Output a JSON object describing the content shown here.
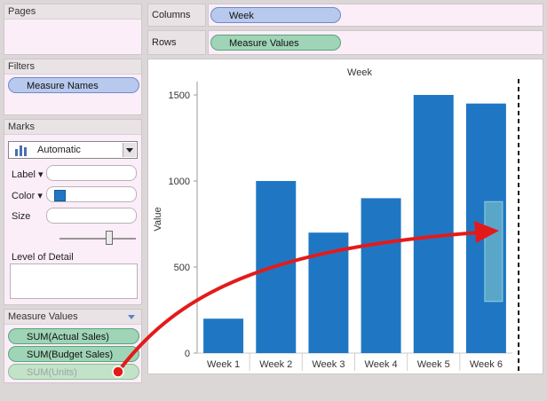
{
  "pages": {
    "title": "Pages"
  },
  "filters": {
    "title": "Filters",
    "pills": [
      "Measure Names"
    ]
  },
  "marks": {
    "title": "Marks",
    "mark_type": "Automatic",
    "label_btn": "Label",
    "color_btn": "Color",
    "size_label": "Size",
    "lod_label": "Level of Detail"
  },
  "measure_values": {
    "title": "Measure Values",
    "items": [
      "SUM(Actual Sales)",
      "SUM(Budget Sales)",
      "SUM(Units)"
    ]
  },
  "shelves": {
    "columns_label": "Columns",
    "columns_pill": "Week",
    "rows_label": "Rows",
    "rows_pill": "Measure Values"
  },
  "colors": {
    "bar": "#1f77c4",
    "arrow": "#e41a1a",
    "drop_target": "#6fb6c9"
  },
  "chart_data": {
    "type": "bar",
    "title": "Week",
    "ylabel": "Value",
    "categories": [
      "Week 1",
      "Week 2",
      "Week 3",
      "Week 4",
      "Week 5",
      "Week 6"
    ],
    "values": [
      200,
      1000,
      700,
      900,
      1500,
      1450
    ],
    "yticks": [
      0,
      500,
      1000,
      1500
    ],
    "ylim": [
      0,
      1500
    ]
  }
}
